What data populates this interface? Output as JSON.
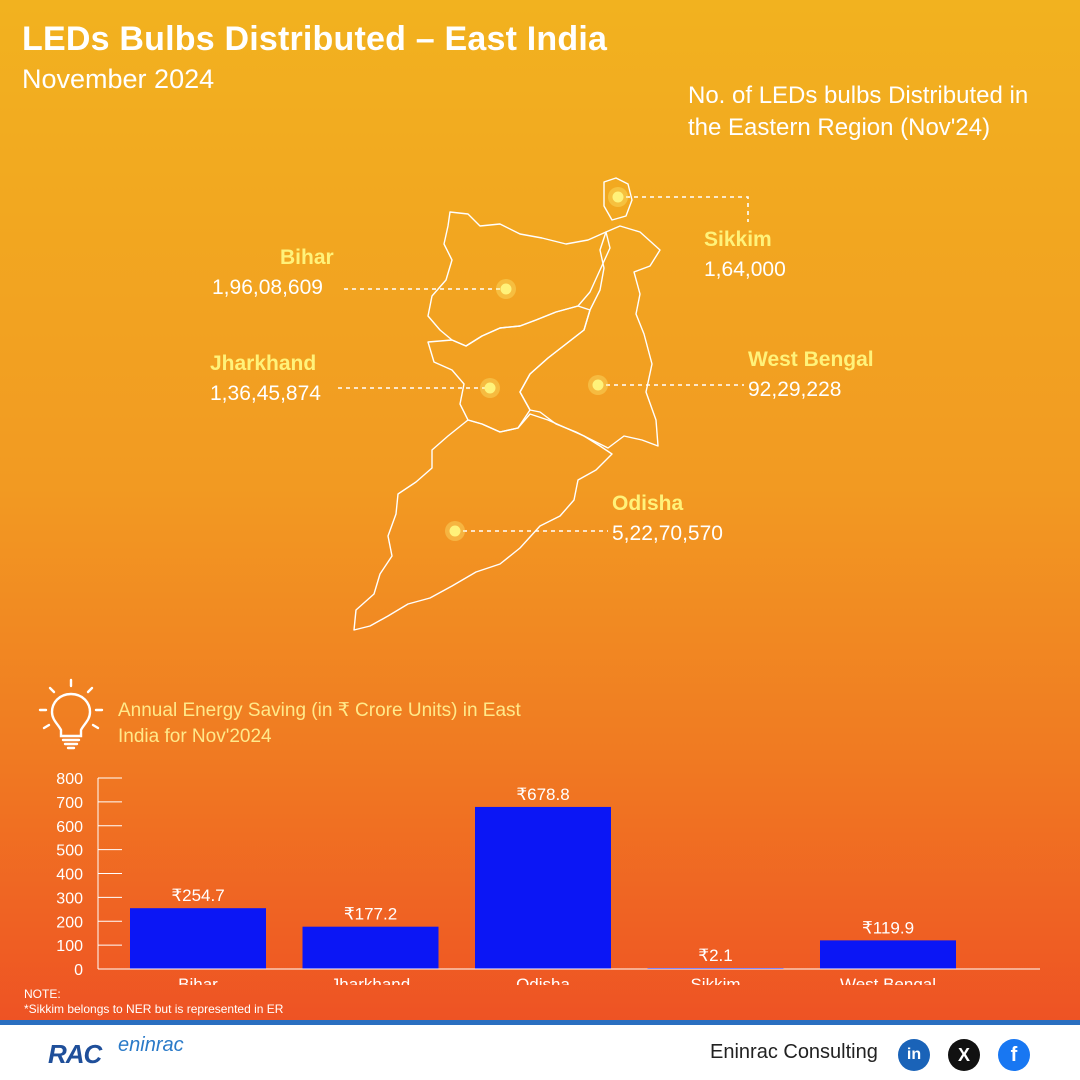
{
  "header": {
    "title": "LEDs Bulbs Distributed – East India",
    "subtitle": "November 2024",
    "region_title": "No. of LEDs bulbs Distributed in the Eastern Region (Nov'24)"
  },
  "states": [
    {
      "name": "Bihar",
      "value": "1,96,08,609"
    },
    {
      "name": "Jharkhand",
      "value": "1,36,45,874"
    },
    {
      "name": "Sikkim",
      "value": "1,64,000"
    },
    {
      "name": "West Bengal",
      "value": "92,29,228"
    },
    {
      "name": "Odisha",
      "value": "5,22,70,570"
    }
  ],
  "colors": {
    "bar": "#0b16f5",
    "state_name": "#fff27a",
    "marker": "#fff27a"
  },
  "chart_data": {
    "type": "bar",
    "title": "Annual Energy Saving (in ₹ Crore Units) in East India for Nov'2024",
    "categories": [
      "Bihar",
      "Jharkhand",
      "Odisha",
      "Sikkim",
      "West Bengal"
    ],
    "values": [
      254.7,
      177.2,
      678.8,
      2.1,
      119.9
    ],
    "data_labels": [
      "₹254.7",
      "₹177.2",
      "₹678.8",
      "₹2.1",
      "₹119.9"
    ],
    "y_ticks": [
      0,
      100,
      200,
      300,
      400,
      500,
      600,
      700,
      800
    ],
    "ylim": [
      0,
      800
    ],
    "xlabel": "",
    "ylabel": ""
  },
  "note": {
    "label": "NOTE:",
    "text": "*Sikkim belongs to NER but is represented in ER"
  },
  "footer": {
    "logo": "RAC",
    "logo_sub": "eninrac",
    "brand": "Eninrac Consulting",
    "social": [
      "in",
      "X",
      "f"
    ],
    "social_icons": [
      "linkedin-icon",
      "x-icon",
      "facebook-icon"
    ]
  }
}
